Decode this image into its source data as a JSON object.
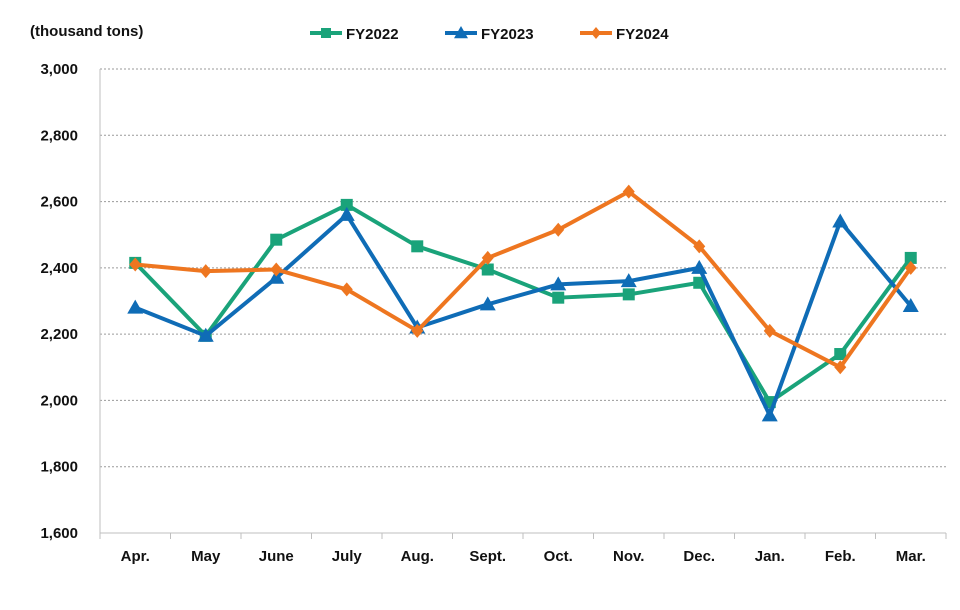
{
  "chart_data": {
    "type": "line",
    "unit_label": "(thousand tons)",
    "categories": [
      "Apr.",
      "May",
      "June",
      "July",
      "Aug.",
      "Sept.",
      "Oct.",
      "Nov.",
      "Dec.",
      "Jan.",
      "Feb.",
      "Mar."
    ],
    "ylim": [
      1600,
      3000
    ],
    "yticks": [
      1600,
      1800,
      2000,
      2200,
      2400,
      2600,
      2800,
      3000
    ],
    "ytick_labels": [
      "1,600",
      "1,800",
      "2,000",
      "2,200",
      "2,400",
      "2,600",
      "2,800",
      "3,000"
    ],
    "grid": true,
    "legend_position": "top",
    "series": [
      {
        "name": "FY2022",
        "color": "#1aa37a",
        "marker": "square",
        "values": [
          2415,
          2195,
          2485,
          2590,
          2465,
          2395,
          2310,
          2320,
          2355,
          1995,
          2140,
          2430
        ]
      },
      {
        "name": "FY2023",
        "color": "#0f6cb6",
        "marker": "triangle",
        "values": [
          2280,
          2195,
          2370,
          2560,
          2220,
          2290,
          2350,
          2360,
          2400,
          1955,
          2540,
          2285
        ]
      },
      {
        "name": "FY2024",
        "color": "#ee7620",
        "marker": "diamond",
        "values": [
          2410,
          2390,
          2395,
          2335,
          2210,
          2430,
          2515,
          2630,
          2465,
          2210,
          2100,
          2400
        ]
      }
    ]
  }
}
